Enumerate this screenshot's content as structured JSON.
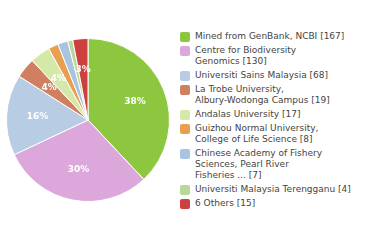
{
  "chart_data": {
    "type": "pie",
    "categories": [
      "Mined from GenBank, NCBI [167]",
      "Centre for Biodiversity\nGenomics [130]",
      "Universiti Sains Malaysia [68]",
      "La Trobe University,\nAlbury-Wodonga Campus [19]",
      "Andalas University [17]",
      "Guizhou Normal University,\nCollege of Life Science [8]",
      "Chinese Academy of Fishery\nSciences, Pearl River\nFisheries ... [7]",
      "Universiti Malaysia Terengganu [4]",
      "6 Others [15]"
    ],
    "values": [
      38,
      30,
      16,
      4,
      4,
      2,
      2,
      1,
      3
    ],
    "value_labels": [
      "38%",
      "30%",
      "16%",
      "4%",
      "4%",
      null,
      null,
      null,
      "3%"
    ],
    "colors": [
      "#8dc63f",
      "#dca8dc",
      "#b8cce4",
      "#d08060",
      "#d4e8a8",
      "#e8a050",
      "#a8c4e0",
      "#b8d898",
      "#cc4040"
    ],
    "data_labels": true,
    "legend": "right"
  }
}
